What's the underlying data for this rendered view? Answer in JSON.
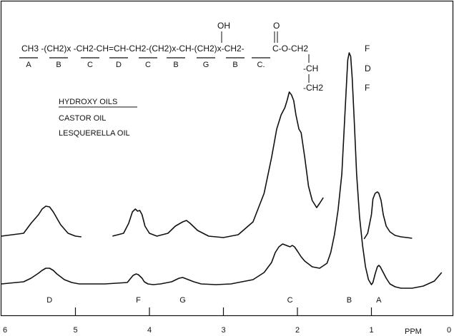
{
  "chart_data": {
    "type": "line",
    "title": "",
    "xlabel": "PPM",
    "ylabel": "",
    "xlim": [
      6,
      0
    ],
    "x_reversed": true,
    "ticks": [
      "6",
      "5",
      "4",
      "3",
      "2",
      "1",
      "0"
    ],
    "legend": {
      "heading": "HYDROXY OILS",
      "entries": [
        "CASTOR OIL",
        "LESQUERELLA OIL"
      ]
    },
    "structure": {
      "row": [
        "CH3 -(CH2)x -CH2-CH=CH-CH2-(CH2)x-CH-(CH2)x-CH2-",
        "C-O-CH2",
        "-CH",
        "-CH2"
      ],
      "oh": "OH",
      "carbonyl_o": "O",
      "letters": [
        "A",
        "B",
        "C",
        "D",
        "C",
        "B",
        "G",
        "B",
        "C."
      ],
      "glycerol_letters": [
        "F",
        "D",
        "F"
      ]
    },
    "peak_labels": [
      {
        "label": "D",
        "ppm": 5.35
      },
      {
        "label": "F",
        "ppm": 4.15
      },
      {
        "label": "G",
        "ppm": 3.55
      },
      {
        "label": "C",
        "ppm": 2.1
      },
      {
        "label": "B",
        "ppm": 1.3
      },
      {
        "label": "A",
        "ppm": 0.9
      }
    ],
    "series": [
      {
        "x": [
          6.0,
          5.7,
          5.6,
          5.5,
          5.45,
          5.4,
          5.35,
          5.3,
          5.25,
          5.15,
          5.05,
          4.95,
          4.6,
          4.3,
          4.22,
          4.18,
          4.15,
          4.1,
          4.07,
          4.02,
          3.95,
          3.85,
          3.7,
          3.6,
          3.55,
          3.5,
          3.4,
          3.3,
          3.1,
          2.9,
          2.6,
          2.45,
          2.35,
          2.3,
          2.25,
          2.2,
          2.15,
          2.1,
          2.07,
          2.04,
          2.0,
          1.95,
          1.9,
          1.8,
          1.7,
          1.6,
          1.55,
          1.5,
          1.45,
          1.4,
          1.37,
          1.34,
          1.32,
          1.3,
          1.28,
          1.26,
          1.23,
          1.2,
          1.16,
          1.12,
          1.08,
          1.04,
          1.0,
          0.98,
          0.95,
          0.92,
          0.9,
          0.88,
          0.85,
          0.8,
          0.75,
          0.68,
          0.6,
          0.45,
          0.3,
          0.15,
          0.05
        ],
        "y": [
          6,
          9,
          14,
          21,
          25,
          28,
          28,
          25,
          20,
          12,
          8,
          6,
          6,
          8,
          18,
          20,
          19,
          14,
          9,
          6,
          5,
          6,
          9,
          14,
          15,
          13,
          9,
          6,
          5,
          6,
          12,
          22,
          36,
          50,
          58,
          62,
          60,
          58,
          60,
          58,
          52,
          44,
          38,
          30,
          28,
          35,
          50,
          75,
          110,
          160,
          220,
          280,
          320,
          330,
          325,
          295,
          230,
          160,
          100,
          60,
          30,
          12,
          5,
          8,
          20,
          30,
          32,
          30,
          24,
          14,
          6,
          2,
          0,
          0,
          3,
          10,
          22
        ]
      },
      {
        "x": [
          6.0,
          5.7,
          5.6,
          5.5,
          5.45,
          5.4,
          5.35,
          5.3,
          5.2,
          5.1,
          5.0,
          4.92
        ],
        "y": [
          10,
          14,
          28,
          40,
          48,
          52,
          51,
          44,
          26,
          14,
          10,
          9
        ]
      },
      {
        "x": [
          4.5,
          4.35,
          4.28,
          4.23,
          4.19,
          4.16,
          4.13,
          4.1,
          4.06,
          4.0,
          3.9,
          3.75,
          3.65,
          3.55,
          3.5,
          3.45,
          3.35,
          3.2,
          3.0,
          2.8,
          2.6,
          2.45,
          2.35,
          2.28,
          2.22,
          2.17,
          2.14,
          2.11,
          2.08,
          2.05,
          2.02,
          1.98,
          1.95,
          1.9,
          1.85,
          1.8,
          1.74,
          1.7,
          1.65
        ],
        "y": [
          10,
          14,
          28,
          44,
          48,
          45,
          46,
          40,
          24,
          14,
          10,
          14,
          24,
          30,
          32,
          28,
          18,
          10,
          8,
          12,
          30,
          70,
          120,
          160,
          180,
          190,
          200,
          212,
          208,
          200,
          180,
          160,
          155,
          120,
          80,
          60,
          50,
          56,
          64
        ]
      },
      {
        "x": [
          1.1,
          1.05,
          1.0,
          0.98,
          0.95,
          0.92,
          0.9,
          0.87,
          0.84,
          0.8,
          0.75,
          0.68,
          0.6,
          0.52,
          0.45
        ],
        "y": [
          6,
          14,
          40,
          62,
          70,
          72,
          70,
          60,
          40,
          24,
          16,
          11,
          9,
          8,
          7
        ]
      }
    ]
  }
}
